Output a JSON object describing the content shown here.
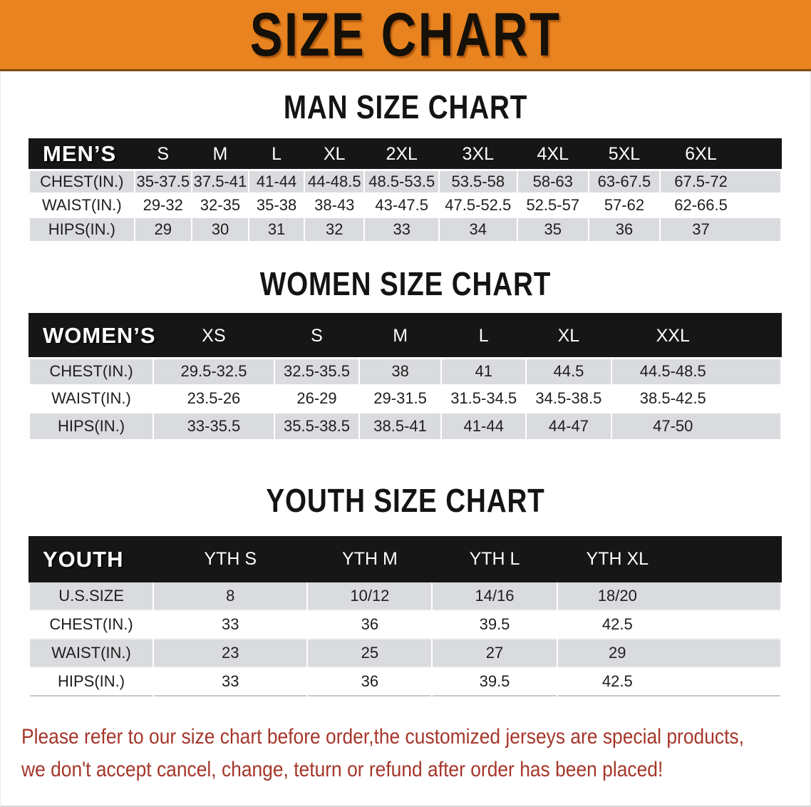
{
  "banner": {
    "title": "SIZE CHART",
    "bg_color": "#E8831F"
  },
  "sections": [
    {
      "id": "men",
      "heading": "MAN SIZE CHART",
      "group_label": "MEN’S",
      "columns": [
        "S",
        "M",
        "L",
        "XL",
        "2XL",
        "3XL",
        "4XL",
        "5XL",
        "6XL"
      ],
      "rows": [
        {
          "label": "CHEST(IN.)",
          "values": [
            "35-37.5",
            "37.5-41",
            "41-44",
            "44-48.5",
            "48.5-53.5",
            "53.5-58",
            "58-63",
            "63-67.5",
            "67.5-72"
          ]
        },
        {
          "label": "WAIST(IN.)",
          "values": [
            "29-32",
            "32-35",
            "35-38",
            "38-43",
            "43-47.5",
            "47.5-52.5",
            "52.5-57",
            "57-62",
            "62-66.5"
          ]
        },
        {
          "label": "HIPS(IN.)",
          "values": [
            "29",
            "30",
            "31",
            "32",
            "33",
            "34",
            "35",
            "36",
            "37"
          ]
        }
      ]
    },
    {
      "id": "women",
      "heading": "WOMEN SIZE CHART",
      "group_label": "WOMEN’S",
      "columns": [
        "XS",
        "S",
        "M",
        "L",
        "XL",
        "XXL"
      ],
      "rows": [
        {
          "label": "CHEST(IN.)",
          "values": [
            "29.5-32.5",
            "32.5-35.5",
            "38",
            "41",
            "44.5",
            "44.5-48.5"
          ]
        },
        {
          "label": "WAIST(IN.)",
          "values": [
            "23.5-26",
            "26-29",
            "29-31.5",
            "31.5-34.5",
            "34.5-38.5",
            "38.5-42.5"
          ]
        },
        {
          "label": "HIPS(IN.)",
          "values": [
            "33-35.5",
            "35.5-38.5",
            "38.5-41",
            "41-44",
            "44-47",
            "47-50"
          ]
        }
      ]
    },
    {
      "id": "youth",
      "heading": "YOUTH SIZE CHART",
      "group_label": "YOUTH",
      "columns": [
        "YTH S",
        "YTH M",
        "YTH L",
        "YTH XL"
      ],
      "rows": [
        {
          "label": "U.S.SIZE",
          "values": [
            "8",
            "10/12",
            "14/16",
            "18/20"
          ]
        },
        {
          "label": "CHEST(IN.)",
          "values": [
            "33",
            "36",
            "39.5",
            "42.5"
          ]
        },
        {
          "label": "WAIST(IN.)",
          "values": [
            "23",
            "25",
            "27",
            "29"
          ]
        },
        {
          "label": "HIPS(IN.)",
          "values": [
            "33",
            "36",
            "39.5",
            "42.5"
          ]
        }
      ]
    }
  ],
  "disclaimer": {
    "line1": "Please refer to our size chart before order,the customized jerseys are special products,",
    "line2": "we don't accept cancel, change, teturn or refund after order has been placed!",
    "text_color": "#A5362A"
  }
}
